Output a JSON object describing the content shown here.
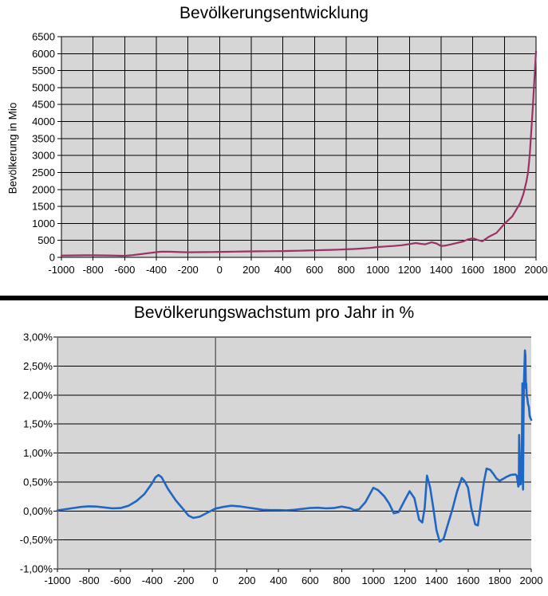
{
  "page": {
    "background": "#ffffff",
    "divider_color": "#000000"
  },
  "chart_data": [
    {
      "type": "line",
      "title": "Bevölkerungsentwicklung",
      "ylabel": "Bevölkerung in Mio",
      "xlabel": "",
      "xlim": [
        -1000,
        2000
      ],
      "ylim": [
        0,
        6500
      ],
      "grid": "both",
      "legend": "none",
      "plot_bg": "#d6d6d6",
      "grid_color": "#000000",
      "axis_color": "#000000",
      "vertical_grid": true,
      "zero_x_line": false,
      "y_ticks": [
        [
          0,
          "0"
        ],
        [
          500,
          "500"
        ],
        [
          1000,
          "1000"
        ],
        [
          1500,
          "1500"
        ],
        [
          2000,
          "2000"
        ],
        [
          2500,
          "2500"
        ],
        [
          3000,
          "3000"
        ],
        [
          3500,
          "3500"
        ],
        [
          4000,
          "4000"
        ],
        [
          4500,
          "4500"
        ],
        [
          5000,
          "5000"
        ],
        [
          5500,
          "5500"
        ],
        [
          6000,
          "6000"
        ],
        [
          6500,
          "6500"
        ]
      ],
      "x_ticks": [
        [
          -1000,
          "-1000"
        ],
        [
          -800,
          "-800"
        ],
        [
          -600,
          "-600"
        ],
        [
          -400,
          "-400"
        ],
        [
          -200,
          "-200"
        ],
        [
          0,
          "0"
        ],
        [
          200,
          "200"
        ],
        [
          400,
          "400"
        ],
        [
          600,
          "600"
        ],
        [
          800,
          "800"
        ],
        [
          1000,
          "1000"
        ],
        [
          1200,
          "1200"
        ],
        [
          1400,
          "1400"
        ],
        [
          1600,
          "1600"
        ],
        [
          1800,
          "1800"
        ],
        [
          2000,
          "2000"
        ]
      ],
      "series": [
        {
          "color": "#993366",
          "points": [
            [
              -1000,
              55
            ],
            [
              -950,
              57
            ],
            [
              -900,
              59
            ],
            [
              -850,
              61
            ],
            [
              -800,
              61
            ],
            [
              -750,
              59
            ],
            [
              -700,
              56
            ],
            [
              -650,
              51
            ],
            [
              -620,
              47
            ],
            [
              -590,
              50
            ],
            [
              -550,
              65
            ],
            [
              -500,
              95
            ],
            [
              -450,
              125
            ],
            [
              -400,
              152
            ],
            [
              -370,
              166
            ],
            [
              -340,
              170
            ],
            [
              -300,
              164
            ],
            [
              -250,
              156
            ],
            [
              -200,
              150
            ],
            [
              -150,
              152
            ],
            [
              -100,
              155
            ],
            [
              -50,
              158
            ],
            [
              0,
              161
            ],
            [
              50,
              165
            ],
            [
              100,
              170
            ],
            [
              150,
              173
            ],
            [
              200,
              176
            ],
            [
              250,
              178
            ],
            [
              300,
              180
            ],
            [
              350,
              182
            ],
            [
              400,
              185
            ],
            [
              450,
              189
            ],
            [
              500,
              195
            ],
            [
              550,
              201
            ],
            [
              600,
              207
            ],
            [
              650,
              213
            ],
            [
              700,
              220
            ],
            [
              750,
              228
            ],
            [
              800,
              237
            ],
            [
              850,
              247
            ],
            [
              900,
              260
            ],
            [
              950,
              278
            ],
            [
              1000,
              305
            ],
            [
              1050,
              322
            ],
            [
              1100,
              336
            ],
            [
              1150,
              356
            ],
            [
              1200,
              393
            ],
            [
              1240,
              423
            ],
            [
              1270,
              400
            ],
            [
              1300,
              385
            ],
            [
              1340,
              443
            ],
            [
              1370,
              410
            ],
            [
              1400,
              333
            ],
            [
              1430,
              350
            ],
            [
              1460,
              380
            ],
            [
              1500,
              425
            ],
            [
              1540,
              470
            ],
            [
              1570,
              530
            ],
            [
              1600,
              560
            ],
            [
              1630,
              515
            ],
            [
              1660,
              475
            ],
            [
              1700,
              600
            ],
            [
              1750,
              720
            ],
            [
              1800,
              985
            ],
            [
              1850,
              1210
            ],
            [
              1900,
              1600
            ],
            [
              1920,
              1860
            ],
            [
              1940,
              2250
            ],
            [
              1950,
              2520
            ],
            [
              1960,
              3020
            ],
            [
              1970,
              3700
            ],
            [
              1980,
              4440
            ],
            [
              1990,
              5270
            ],
            [
              2000,
              6070
            ]
          ]
        }
      ]
    },
    {
      "type": "line",
      "title": "Bevölkerungswachstum pro Jahr in %",
      "ylabel": "",
      "xlabel": "",
      "xlim": [
        -1000,
        2000
      ],
      "ylim": [
        -1,
        3
      ],
      "grid": "horizontal",
      "legend": "none",
      "plot_bg": "#d6d6d6",
      "grid_color": "#000000",
      "axis_color": "#666666",
      "vertical_grid": false,
      "zero_x_line": true,
      "y_ticks": [
        [
          3,
          "3,00%"
        ],
        [
          2.5,
          "2,50%"
        ],
        [
          2,
          "2,00%"
        ],
        [
          1.5,
          "1,50%"
        ],
        [
          1,
          "1,00%"
        ],
        [
          0.5,
          "0,50%"
        ],
        [
          0,
          "0,00%"
        ],
        [
          -0.5,
          "-0,50%"
        ],
        [
          -1,
          "-1,00%"
        ]
      ],
      "x_ticks": [
        [
          -1000,
          "-1000"
        ],
        [
          -800,
          "-800"
        ],
        [
          -600,
          "-600"
        ],
        [
          -400,
          "-400"
        ],
        [
          -200,
          "-200"
        ],
        [
          0,
          "0"
        ],
        [
          200,
          "200"
        ],
        [
          400,
          "400"
        ],
        [
          600,
          "600"
        ],
        [
          800,
          "800"
        ],
        [
          1000,
          "1000"
        ],
        [
          1200,
          "1200"
        ],
        [
          1400,
          "1400"
        ],
        [
          1600,
          "1600"
        ],
        [
          1800,
          "1800"
        ],
        [
          2000,
          "2000"
        ]
      ],
      "series": [
        {
          "color": "#2066c4",
          "points": [
            [
              -1000,
              0.01
            ],
            [
              -950,
              0.03
            ],
            [
              -900,
              0.05
            ],
            [
              -850,
              0.07
            ],
            [
              -800,
              0.08
            ],
            [
              -750,
              0.075
            ],
            [
              -700,
              0.06
            ],
            [
              -650,
              0.045
            ],
            [
              -600,
              0.05
            ],
            [
              -550,
              0.09
            ],
            [
              -500,
              0.17
            ],
            [
              -450,
              0.29
            ],
            [
              -400,
              0.48
            ],
            [
              -380,
              0.58
            ],
            [
              -360,
              0.62
            ],
            [
              -340,
              0.58
            ],
            [
              -300,
              0.38
            ],
            [
              -250,
              0.18
            ],
            [
              -200,
              0.02
            ],
            [
              -170,
              -0.08
            ],
            [
              -140,
              -0.12
            ],
            [
              -100,
              -0.1
            ],
            [
              -50,
              -0.03
            ],
            [
              0,
              0.04
            ],
            [
              50,
              0.07
            ],
            [
              100,
              0.09
            ],
            [
              150,
              0.08
            ],
            [
              200,
              0.06
            ],
            [
              250,
              0.04
            ],
            [
              300,
              0.02
            ],
            [
              350,
              0.015
            ],
            [
              400,
              0.015
            ],
            [
              450,
              0.01
            ],
            [
              500,
              0.02
            ],
            [
              550,
              0.035
            ],
            [
              600,
              0.05
            ],
            [
              650,
              0.055
            ],
            [
              700,
              0.045
            ],
            [
              750,
              0.05
            ],
            [
              800,
              0.075
            ],
            [
              850,
              0.05
            ],
            [
              880,
              0.015
            ],
            [
              910,
              0.03
            ],
            [
              950,
              0.15
            ],
            [
              1000,
              0.4
            ],
            [
              1030,
              0.36
            ],
            [
              1070,
              0.25
            ],
            [
              1100,
              0.13
            ],
            [
              1130,
              -0.04
            ],
            [
              1160,
              -0.02
            ],
            [
              1200,
              0.19
            ],
            [
              1230,
              0.34
            ],
            [
              1260,
              0.22
            ],
            [
              1290,
              -0.15
            ],
            [
              1310,
              -0.2
            ],
            [
              1325,
              0.05
            ],
            [
              1340,
              0.61
            ],
            [
              1360,
              0.4
            ],
            [
              1380,
              0.05
            ],
            [
              1400,
              -0.33
            ],
            [
              1420,
              -0.53
            ],
            [
              1445,
              -0.48
            ],
            [
              1470,
              -0.25
            ],
            [
              1500,
              0.02
            ],
            [
              1530,
              0.33
            ],
            [
              1560,
              0.57
            ],
            [
              1580,
              0.51
            ],
            [
              1600,
              0.4
            ],
            [
              1620,
              0.05
            ],
            [
              1645,
              -0.23
            ],
            [
              1662,
              -0.25
            ],
            [
              1680,
              0.1
            ],
            [
              1700,
              0.5
            ],
            [
              1717,
              0.73
            ],
            [
              1740,
              0.71
            ],
            [
              1760,
              0.64
            ],
            [
              1780,
              0.56
            ],
            [
              1800,
              0.52
            ],
            [
              1820,
              0.55
            ],
            [
              1845,
              0.59
            ],
            [
              1870,
              0.62
            ],
            [
              1900,
              0.63
            ],
            [
              1908,
              0.61
            ],
            [
              1914,
              0.5
            ],
            [
              1918,
              0.42
            ],
            [
              1921,
              0.44
            ],
            [
              1923,
              1.31
            ],
            [
              1926,
              0.95
            ],
            [
              1930,
              0.75
            ],
            [
              1933,
              0.46
            ],
            [
              1937,
              0.6
            ],
            [
              1941,
              1.2
            ],
            [
              1944,
              2.2
            ],
            [
              1946,
              0.8
            ],
            [
              1948,
              0.37
            ],
            [
              1951,
              1.6
            ],
            [
              1954,
              2.25
            ],
            [
              1957,
              2.5
            ],
            [
              1960,
              2.77
            ],
            [
              1963,
              2.68
            ],
            [
              1966,
              2.12
            ],
            [
              1968,
              2.2
            ],
            [
              1971,
              1.98
            ],
            [
              1975,
              1.95
            ],
            [
              1980,
              1.84
            ],
            [
              1985,
              1.8
            ],
            [
              1990,
              1.64
            ],
            [
              1995,
              1.6
            ],
            [
              2000,
              1.57
            ]
          ]
        }
      ]
    }
  ]
}
